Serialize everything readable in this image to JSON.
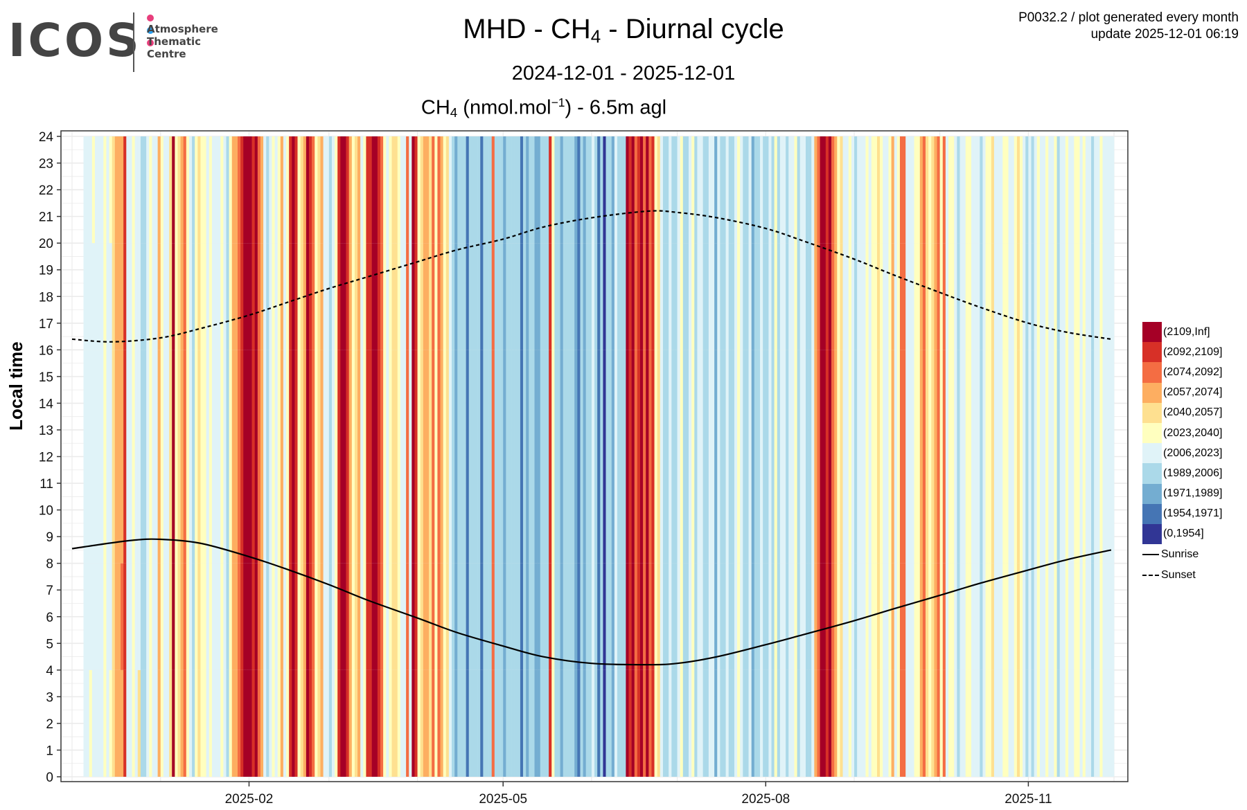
{
  "header": {
    "logo_text": "ICOS",
    "logo_subtitle": [
      "Atmosphere",
      "Thematic",
      "Centre"
    ],
    "logo_dot_colors": [
      "#e83e7c",
      "#2aa0f0",
      "#e83e7c"
    ],
    "info_line1": "P0032.2 / plot generated every month",
    "info_line2": "update  2025-12-01 06:19"
  },
  "chart_data": {
    "type": "heatmap",
    "title_parts": {
      "pre": "MHD - CH",
      "sub": "4",
      "post": " - Diurnal cycle"
    },
    "subtitle": "2024-12-01 - 2025-12-01",
    "variable_parts": {
      "pre": "CH",
      "sub": "4",
      "mid": " (nmol.mol",
      "sup": "−1",
      "post": ") - 6.5m agl"
    },
    "xlabel": "",
    "ylabel": "Local time",
    "x_range": [
      "2024-12-01",
      "2025-12-01"
    ],
    "x_ticks": [
      {
        "date": "2025-02-01",
        "label": "2025-02"
      },
      {
        "date": "2025-05-01",
        "label": "2025-05"
      },
      {
        "date": "2025-08-01",
        "label": "2025-08"
      },
      {
        "date": "2025-11-01",
        "label": "2025-11"
      }
    ],
    "y_range": [
      0,
      24
    ],
    "y_ticks": [
      0,
      1,
      2,
      3,
      4,
      5,
      6,
      7,
      8,
      9,
      10,
      11,
      12,
      13,
      14,
      15,
      16,
      17,
      18,
      19,
      20,
      21,
      22,
      23,
      24
    ],
    "grid": true,
    "legend_position": "right",
    "color_classes": [
      {
        "label": "(2109,Inf]",
        "color": "#a50026"
      },
      {
        "label": "(2092,2109]",
        "color": "#d73027"
      },
      {
        "label": "(2074,2092]",
        "color": "#f46d43"
      },
      {
        "label": "(2057,2074]",
        "color": "#fdae61"
      },
      {
        "label": "(2040,2057]",
        "color": "#fee090"
      },
      {
        "label": "(2023,2040]",
        "color": "#ffffbf"
      },
      {
        "label": "(2006,2023]",
        "color": "#e0f3f8"
      },
      {
        "label": "(1989,2006]",
        "color": "#abd9e9"
      },
      {
        "label": "(1971,1989]",
        "color": "#74add1"
      },
      {
        "label": "(1954,1971]",
        "color": "#4575b4"
      },
      {
        "label": "(0,1954]",
        "color": "#313695"
      }
    ],
    "block_hours": 4,
    "cells_note": "Each string = one day starting 2024-12-01; 6 chars = 4-hour blocks from 0-4h to 20-24h; digit = color class index (0=(2109,Inf] ... a=(0,1954]); '-' = missing",
    "days": [
      "------",
      "------",
      "------",
      "------",
      "666666",
      "666666",
      "566666",
      "666665",
      "666666",
      "666666",
      "666666",
      "555555",
      "666666",
      "566665",
      "444444",
      "333333",
      "333333",
      "323333",
      "111111",
      "666666",
      "666666",
      "555555",
      "666666",
      "466666",
      "777777",
      "777777",
      "666666",
      "555555",
      "666666",
      "666666",
      "333333",
      "555555",
      "666666",
      "666666",
      "444444",
      "000000",
      "555555",
      "444444",
      "333333",
      "222222",
      "555555",
      "666666",
      "777777",
      "555555",
      "444444",
      "555555",
      "555555",
      "666666",
      "555555",
      "666666",
      "666666",
      "666666",
      "555555",
      "666666",
      "777777",
      "555555",
      "333333",
      "333333",
      "222222",
      "111111",
      "000000",
      "000000",
      "000000",
      "111111",
      "000000",
      "222222",
      "333333",
      "666666",
      "777777",
      "666666",
      "555555",
      "666666",
      "555555",
      "333333",
      "666666",
      "555555",
      "111111",
      "000000",
      "111111",
      "555555",
      "444444",
      "333333",
      "000000",
      "111111",
      "222222",
      "555555",
      "444444",
      "333333",
      "666666",
      "666666",
      "777777",
      "666666",
      "555555",
      "111111",
      "000000",
      "000000",
      "111111",
      "333333",
      "555555",
      "444444",
      "333333",
      "666666",
      "555555",
      "111111",
      "111111",
      "000000",
      "000000",
      "111111",
      "222222",
      "555555",
      "666666",
      "555555",
      "444444",
      "444444",
      "555555",
      "666666",
      "666666",
      "222222",
      "666666",
      "000000",
      "111111",
      "555555",
      "444444",
      "333333",
      "333333",
      "444444",
      "222222",
      "555555",
      "222222",
      "333333",
      "555555",
      "444444",
      "666666",
      "777777",
      "888888",
      "777777",
      "777777",
      "777777",
      "999999",
      "777777",
      "777777",
      "777777",
      "777777",
      "999999",
      "777777",
      "777777",
      "777777",
      "222222",
      "777777",
      "777777",
      "777777",
      "888888",
      "777777",
      "777777",
      "777777",
      "777777",
      "777777",
      "999999",
      "777777",
      "888888",
      "777777",
      "777777",
      "888888",
      "888888",
      "777777",
      "777777",
      "777777",
      "111111",
      "555555",
      "777777",
      "777777",
      "888888",
      "777777",
      "777777",
      "777777",
      "777777",
      "888888",
      "999999",
      "777777",
      "888888",
      "777777",
      "777777",
      "666666",
      "777777",
      "999999",
      "777777",
      "aaaaaa",
      "777777",
      "777777",
      "888888",
      "666666",
      "777777",
      "777777",
      "777777",
      "000000",
      "111111",
      "000000",
      "222222",
      "111111",
      "000000",
      "222222",
      "000000",
      "222222",
      "111111",
      "555555",
      "444444",
      "666666",
      "777777",
      "777777",
      "666666",
      "777777",
      "777777",
      "666666",
      "555555",
      "777777",
      "777777",
      "666666",
      "555555",
      "777777",
      "666666",
      "666666",
      "777777",
      "777777",
      "666666",
      "666666",
      "888888",
      "666666",
      "777777",
      "777777",
      "666666",
      "777777",
      "777777",
      "666666",
      "555555",
      "666666",
      "777777",
      "777777",
      "666666",
      "888888",
      "777777",
      "777777",
      "666666",
      "777777",
      "777777",
      "666666",
      "777777",
      "555555",
      "777777",
      "666666",
      "666666",
      "777777",
      "666666",
      "666666",
      "555555",
      "777777",
      "666666",
      "666666",
      "777777",
      "777777",
      "666666",
      "333333",
      "222222",
      "000000",
      "000000",
      "111111",
      "000000",
      "222222",
      "333333",
      "555555",
      "444444",
      "666666",
      "666666",
      "555555",
      "666666",
      "777777",
      "666666",
      "666666",
      "666666",
      "555555",
      "666666",
      "555555",
      "555555",
      "444444",
      "555555",
      "666666",
      "666666",
      "555555",
      "333333",
      "666666",
      "555555",
      "222222",
      "222222",
      "666666",
      "666666",
      "666666",
      "555555",
      "555555",
      "333333",
      "222222",
      "444444",
      "555555",
      "444444",
      "333333",
      "222222",
      "555555",
      "222222",
      "666666",
      "555555",
      "555555",
      "666666",
      "777777",
      "666666",
      "666666",
      "555555",
      "555555",
      "666666",
      "666666",
      "666666",
      "777777",
      "666666",
      "555555",
      "555555",
      "444444",
      "666666",
      "666666",
      "666666",
      "555555",
      "555555",
      "666666",
      "666666",
      "555555",
      "444444",
      "555555",
      "666666",
      "777777",
      "666666",
      "777777",
      "666666",
      "555555",
      "666666",
      "666666",
      "555555",
      "666666",
      "666666",
      "555555",
      "777777",
      "666666",
      "666666",
      "555555",
      "666666",
      "666666",
      "555555",
      "555555",
      "666666",
      "555555",
      "666666",
      "666666",
      "777777",
      "666666",
      "666666",
      "555555",
      "666666",
      "666666",
      "666666",
      "666666"
    ],
    "sunrise": {
      "name": "Sunrise",
      "style": "solid",
      "points": [
        {
          "date": "2024-12-01",
          "hour": 8.55
        },
        {
          "date": "2024-12-21",
          "hour": 8.85
        },
        {
          "date": "2025-01-01",
          "hour": 8.9
        },
        {
          "date": "2025-01-15",
          "hour": 8.75
        },
        {
          "date": "2025-02-01",
          "hour": 8.25
        },
        {
          "date": "2025-02-15",
          "hour": 7.75
        },
        {
          "date": "2025-03-01",
          "hour": 7.2
        },
        {
          "date": "2025-03-15",
          "hour": 6.6
        },
        {
          "date": "2025-04-01",
          "hour": 5.95
        },
        {
          "date": "2025-04-15",
          "hour": 5.4
        },
        {
          "date": "2025-05-01",
          "hour": 4.9
        },
        {
          "date": "2025-05-15",
          "hour": 4.5
        },
        {
          "date": "2025-06-01",
          "hour": 4.25
        },
        {
          "date": "2025-06-20",
          "hour": 4.2
        },
        {
          "date": "2025-07-01",
          "hour": 4.25
        },
        {
          "date": "2025-07-15",
          "hour": 4.5
        },
        {
          "date": "2025-08-01",
          "hour": 4.95
        },
        {
          "date": "2025-08-15",
          "hour": 5.35
        },
        {
          "date": "2025-09-01",
          "hour": 5.85
        },
        {
          "date": "2025-09-15",
          "hour": 6.3
        },
        {
          "date": "2025-10-01",
          "hour": 6.8
        },
        {
          "date": "2025-10-15",
          "hour": 7.25
        },
        {
          "date": "2025-11-01",
          "hour": 7.75
        },
        {
          "date": "2025-11-15",
          "hour": 8.15
        },
        {
          "date": "2025-11-30",
          "hour": 8.5
        }
      ]
    },
    "sunset": {
      "name": "Sunset",
      "style": "dashed",
      "points": [
        {
          "date": "2024-12-01",
          "hour": 16.4
        },
        {
          "date": "2024-12-15",
          "hour": 16.3
        },
        {
          "date": "2025-01-01",
          "hour": 16.45
        },
        {
          "date": "2025-01-15",
          "hour": 16.8
        },
        {
          "date": "2025-02-01",
          "hour": 17.3
        },
        {
          "date": "2025-02-15",
          "hour": 17.8
        },
        {
          "date": "2025-03-01",
          "hour": 18.3
        },
        {
          "date": "2025-03-15",
          "hour": 18.75
        },
        {
          "date": "2025-04-01",
          "hour": 19.3
        },
        {
          "date": "2025-04-15",
          "hour": 19.75
        },
        {
          "date": "2025-05-01",
          "hour": 20.15
        },
        {
          "date": "2025-05-15",
          "hour": 20.6
        },
        {
          "date": "2025-06-01",
          "hour": 20.95
        },
        {
          "date": "2025-06-21",
          "hour": 21.2
        },
        {
          "date": "2025-07-01",
          "hour": 21.15
        },
        {
          "date": "2025-07-15",
          "hour": 20.95
        },
        {
          "date": "2025-08-01",
          "hour": 20.55
        },
        {
          "date": "2025-08-15",
          "hour": 20.05
        },
        {
          "date": "2025-09-01",
          "hour": 19.4
        },
        {
          "date": "2025-09-15",
          "hour": 18.8
        },
        {
          "date": "2025-10-01",
          "hour": 18.15
        },
        {
          "date": "2025-10-15",
          "hour": 17.6
        },
        {
          "date": "2025-11-01",
          "hour": 17.0
        },
        {
          "date": "2025-11-15",
          "hour": 16.65
        },
        {
          "date": "2025-11-30",
          "hour": 16.4
        }
      ]
    }
  }
}
